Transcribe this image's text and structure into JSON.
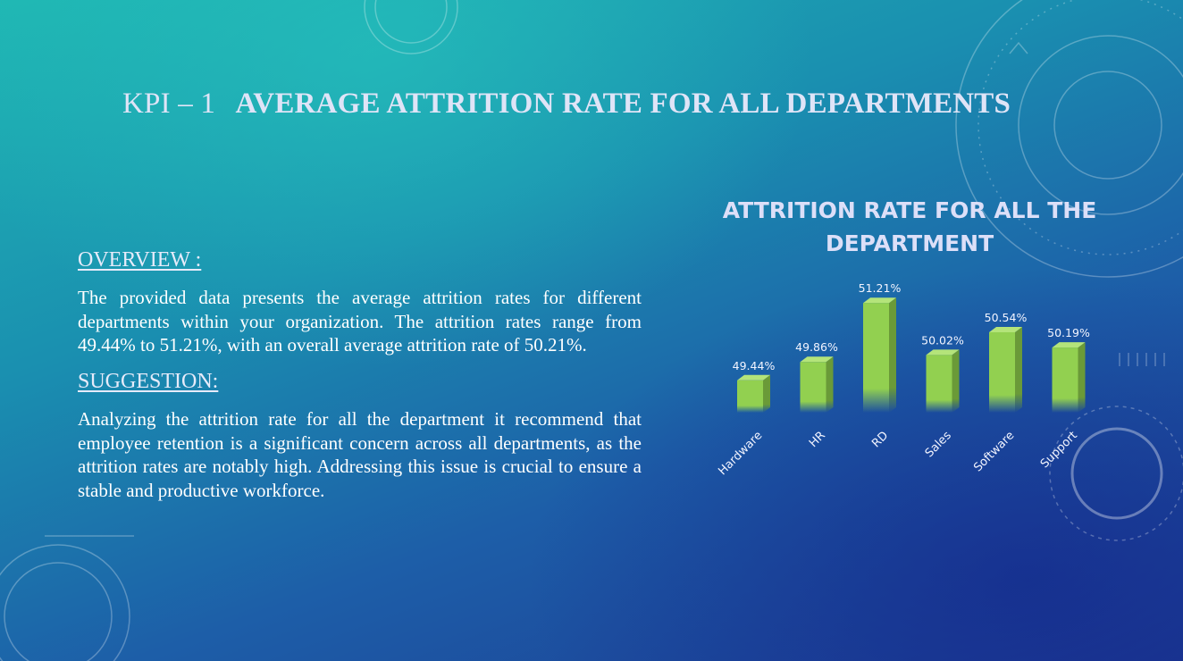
{
  "slide": {
    "title_prefix": "KPI – 1",
    "title_main": "AVERAGE ATTRITION RATE FOR ALL DEPARTMENTS",
    "overview_heading": "OVERVIEW :",
    "overview_text": "The provided data presents the average attrition rates for different departments within your organization. The attrition rates range from 49.44% to 51.21%, with an overall average attrition rate of 50.21%.",
    "suggestion_heading": "SUGGESTION:",
    "suggestion_text": "Analyzing the attrition rate for all the department it recommend that employee retention is a significant concern across all departments, as the attrition rates are notably high. Addressing this issue is crucial to ensure a stable and productive workforce."
  },
  "colors": {
    "bar_front": "#92d050",
    "bar_side": "#6a9a38",
    "bar_top": "#b4e47a",
    "title_text": "#dfe4f7"
  },
  "chart_data": {
    "type": "bar",
    "title_lines": [
      "ATTRITION RATE FOR ALL THE",
      "DEPARTMENT"
    ],
    "categories": [
      "Hardware",
      "HR",
      "RD",
      "Sales",
      "Software",
      "Support"
    ],
    "values": [
      49.44,
      49.86,
      51.21,
      50.02,
      50.54,
      50.19
    ],
    "value_labels": [
      "49.44%",
      "49.86%",
      "51.21%",
      "50.02%",
      "50.54%",
      "50.19%"
    ],
    "ylim": [
      48.7,
      51.5
    ],
    "grid": false,
    "legend": "none"
  }
}
